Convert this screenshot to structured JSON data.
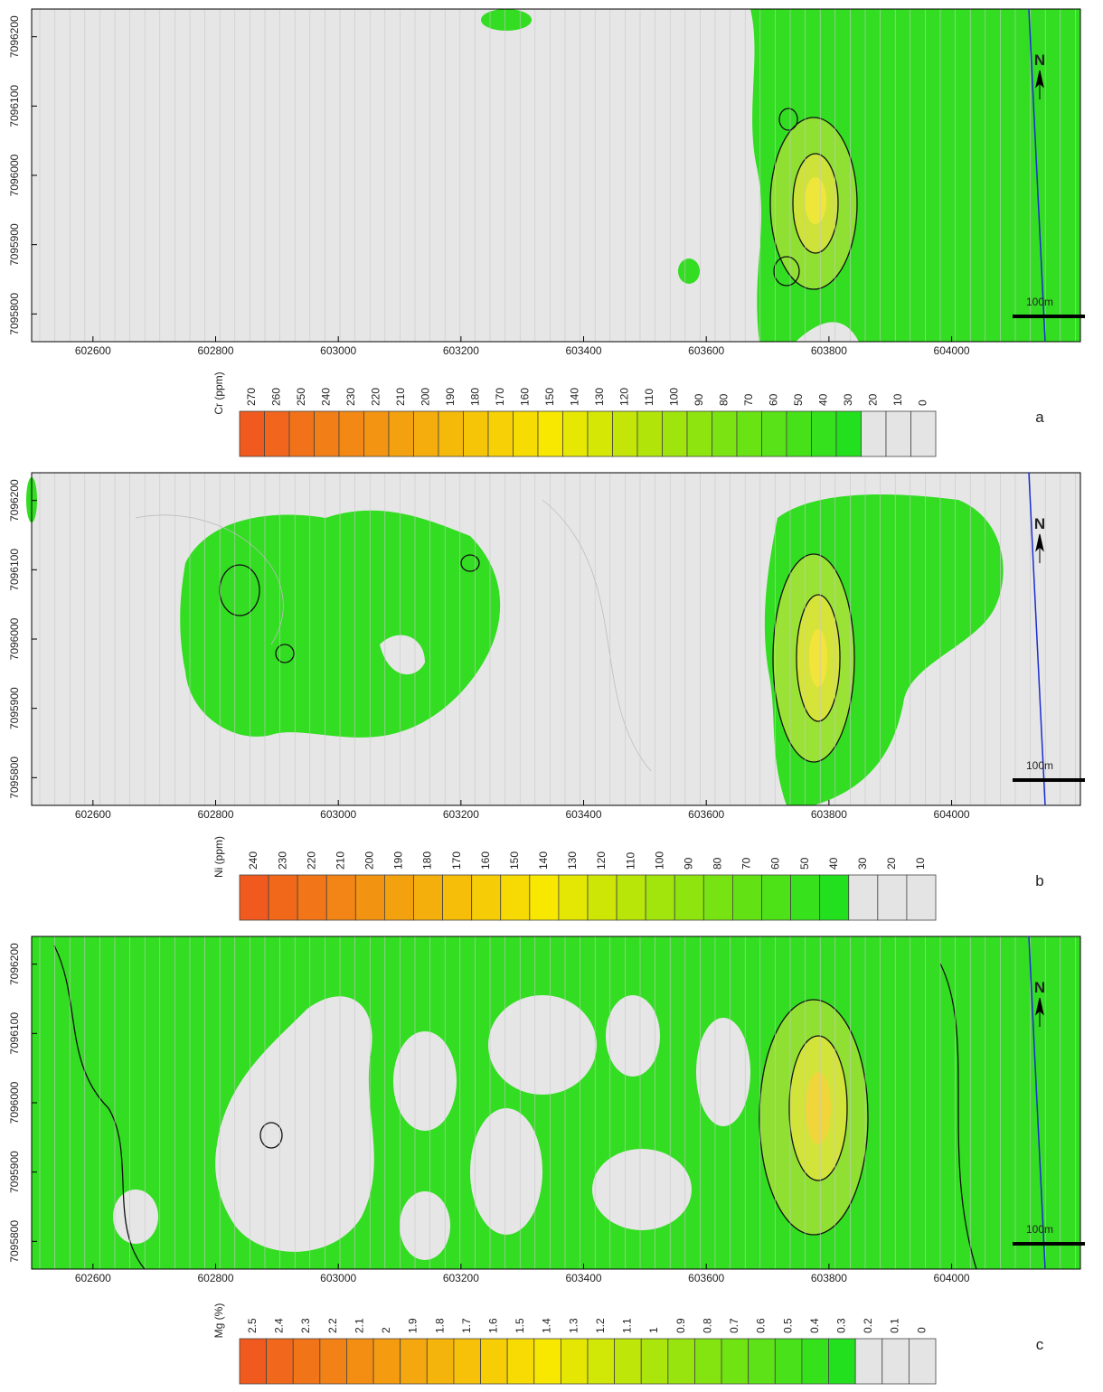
{
  "panels": [
    {
      "label": "a",
      "legend_title": "Cr (ppm)",
      "legend_ticks": [
        270,
        260,
        250,
        240,
        230,
        220,
        210,
        200,
        190,
        180,
        170,
        160,
        150,
        140,
        130,
        120,
        110,
        100,
        90,
        80,
        70,
        60,
        50,
        40,
        30,
        20,
        10,
        0
      ],
      "min_colored": 30,
      "xlim": [
        602500,
        604210
      ],
      "xticks": [
        602600,
        602800,
        603000,
        603200,
        603400,
        603600,
        603800,
        604000
      ],
      "ylim": [
        7095760,
        7096240
      ],
      "yticks": [
        7095800,
        7095900,
        7096000,
        7096100,
        7096200
      ],
      "north": "N",
      "scale_label": "100m"
    },
    {
      "label": "b",
      "legend_title": "Ni (ppm)",
      "legend_ticks": [
        240,
        230,
        220,
        210,
        200,
        190,
        180,
        170,
        160,
        150,
        140,
        130,
        120,
        110,
        100,
        90,
        80,
        70,
        60,
        50,
        40,
        30,
        20,
        10
      ],
      "min_colored": 40,
      "xlim": [
        602500,
        604210
      ],
      "xticks": [
        602600,
        602800,
        603000,
        603200,
        603400,
        603600,
        603800,
        604000
      ],
      "ylim": [
        7095760,
        7096240
      ],
      "yticks": [
        7095800,
        7095900,
        7096000,
        7096100,
        7096200
      ],
      "north": "N",
      "scale_label": "100m"
    },
    {
      "label": "c",
      "legend_title": "Mg (%)",
      "legend_ticks": [
        2.5,
        2.4,
        2.3,
        2.2,
        2.1,
        2,
        1.9,
        1.8,
        1.7,
        1.6,
        1.5,
        1.4,
        1.3,
        1.2,
        1.1,
        1,
        0.9,
        0.8,
        0.7,
        0.6,
        0.5,
        0.4,
        0.3,
        0.2,
        0.1,
        0
      ],
      "min_colored": 0.3,
      "xlim": [
        602500,
        604210
      ],
      "xticks": [
        602600,
        602800,
        603000,
        603200,
        603400,
        603600,
        603800,
        604000
      ],
      "ylim": [
        7095760,
        7096240
      ],
      "yticks": [
        7095800,
        7095900,
        7096000,
        7096100,
        7096200
      ],
      "north": "N",
      "scale_label": "100m"
    }
  ],
  "colors": {
    "high": "#f05a1e",
    "mid": "#f8e800",
    "low": "#22e01e",
    "empty": "#e4e4e4"
  }
}
